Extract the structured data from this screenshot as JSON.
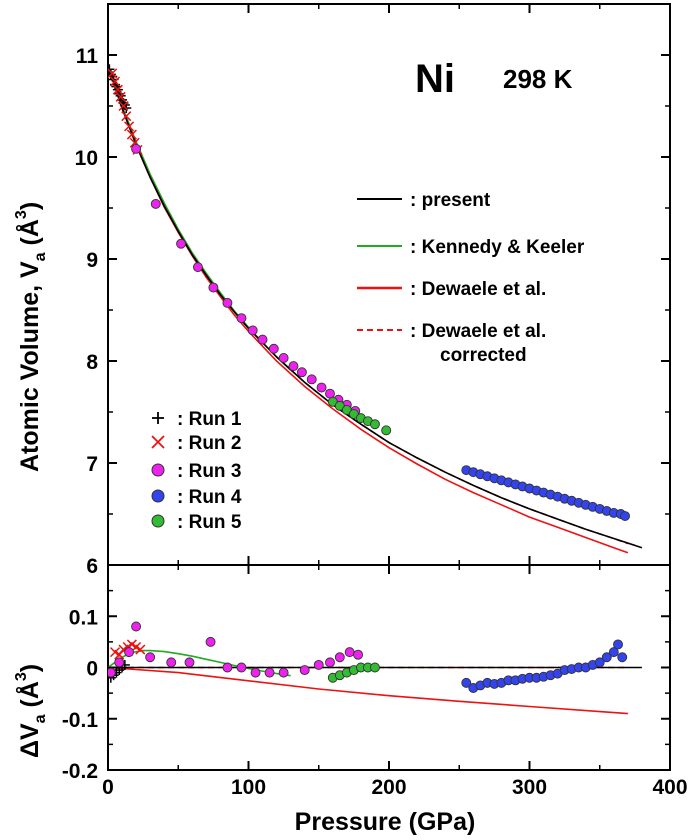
{
  "chart_data": [
    {
      "type": "scatter",
      "title": "Ni",
      "subtitle": "298 K",
      "xlabel": "Pressure (GPa)",
      "ylabel": "Atomic Volume, V_a (Å^3)",
      "ylabel_parts": {
        "main": "Atomic Volume, V",
        "sub": "a",
        "open": " (Å",
        "sup": "3",
        "close": ")"
      },
      "xlim": [
        0,
        400
      ],
      "ylim": [
        6,
        11.5
      ],
      "x_ticks": [
        0,
        100,
        200,
        300,
        400
      ],
      "y_ticks": [
        6,
        7,
        8,
        9,
        10,
        11
      ],
      "y_tick_labels": [
        "6",
        "7",
        "8",
        "9",
        "10",
        "11"
      ],
      "grid": false,
      "legend_lines_position": "right",
      "legend_markers_position": "bottom-left",
      "lines": [
        {
          "name": ": present",
          "color": "#000000",
          "dash": "solid",
          "x": [
            0,
            10,
            20,
            30,
            40,
            50,
            60,
            70,
            80,
            90,
            100,
            120,
            140,
            160,
            180,
            200,
            220,
            240,
            260,
            280,
            300,
            320,
            340,
            360,
            380
          ],
          "y": [
            10.9,
            10.48,
            10.12,
            9.8,
            9.52,
            9.27,
            9.04,
            8.84,
            8.65,
            8.48,
            8.32,
            8.04,
            7.79,
            7.57,
            7.38,
            7.2,
            7.05,
            6.91,
            6.78,
            6.66,
            6.55,
            6.45,
            6.35,
            6.26,
            6.17
          ]
        },
        {
          "name": ": Kennedy & Keeler",
          "color": "#22aa22",
          "dash": "solid",
          "x": [
            0,
            10,
            20,
            30,
            40,
            50,
            60,
            70,
            80,
            90,
            100,
            110,
            120,
            130
          ],
          "y": [
            10.9,
            10.5,
            10.15,
            9.83,
            9.55,
            9.29,
            9.06,
            8.86,
            8.67,
            8.49,
            8.33,
            8.18,
            8.04,
            7.91
          ]
        },
        {
          "name": ": Dewaele et al.",
          "color": "#ee1111",
          "dash": "solid",
          "x": [
            0,
            10,
            20,
            30,
            40,
            50,
            60,
            70,
            80,
            90,
            100,
            120,
            140,
            160,
            180,
            200,
            220,
            240,
            260,
            280,
            300,
            320,
            340,
            360,
            370
          ],
          "y": [
            10.9,
            10.48,
            10.12,
            9.8,
            9.51,
            9.26,
            9.03,
            8.82,
            8.63,
            8.45,
            8.29,
            8.0,
            7.75,
            7.53,
            7.33,
            7.15,
            6.99,
            6.84,
            6.71,
            6.59,
            6.47,
            6.37,
            6.27,
            6.17,
            6.12
          ]
        },
        {
          "name": ": Dewaele et al. corrected",
          "name_lines": [
            ": Dewaele et al.",
            "corrected"
          ],
          "color": "#ee1111",
          "dash": "dashed",
          "x": [
            0,
            10,
            20,
            30,
            40,
            50,
            60,
            70,
            80,
            90,
            100,
            120,
            140,
            160,
            180,
            200,
            220,
            240,
            260,
            280,
            300,
            320,
            340,
            360,
            370
          ],
          "y": [
            10.9,
            10.48,
            10.12,
            9.8,
            9.52,
            9.27,
            9.04,
            8.84,
            8.65,
            8.48,
            8.32,
            8.04,
            7.79,
            7.57,
            7.38,
            7.2,
            7.05,
            6.91,
            6.78,
            6.66,
            6.55,
            6.45,
            6.35,
            6.26,
            6.21
          ]
        }
      ],
      "markers": [
        {
          "name": ": Run 1",
          "symbol": "plus",
          "color": "#000000",
          "x": [
            1,
            2,
            3,
            4,
            5,
            6,
            7,
            8,
            9,
            10,
            11,
            12,
            13
          ],
          "y": [
            10.86,
            10.81,
            10.79,
            10.76,
            10.71,
            10.69,
            10.66,
            10.62,
            10.6,
            10.56,
            10.53,
            10.51,
            10.48
          ]
        },
        {
          "name": ": Run 2",
          "symbol": "cross",
          "color": "#ee1111",
          "x": [
            3,
            5,
            7,
            9,
            11,
            13,
            15,
            17,
            19,
            21
          ],
          "y": [
            10.82,
            10.74,
            10.66,
            10.59,
            10.5,
            10.4,
            10.3,
            10.22,
            10.14,
            10.07
          ]
        },
        {
          "name": ": Run 3",
          "symbol": "circle",
          "color": "#ee22ee",
          "x": [
            20,
            34,
            52,
            64,
            75,
            85,
            95,
            103,
            110,
            118,
            125,
            132,
            138,
            145,
            152,
            158,
            164,
            170,
            176
          ],
          "y": [
            10.08,
            9.54,
            9.15,
            8.92,
            8.72,
            8.57,
            8.42,
            8.3,
            8.21,
            8.12,
            8.03,
            7.95,
            7.89,
            7.82,
            7.74,
            7.68,
            7.62,
            7.57,
            7.51
          ]
        },
        {
          "name": ": Run 4",
          "symbol": "circle",
          "color": "#3344ee",
          "x": [
            255,
            260,
            265,
            270,
            275,
            280,
            285,
            290,
            295,
            300,
            305,
            310,
            315,
            320,
            325,
            330,
            335,
            340,
            345,
            350,
            355,
            360,
            365,
            368
          ],
          "y": [
            6.93,
            6.91,
            6.89,
            6.87,
            6.85,
            6.83,
            6.81,
            6.79,
            6.77,
            6.75,
            6.73,
            6.71,
            6.69,
            6.67,
            6.65,
            6.63,
            6.61,
            6.59,
            6.57,
            6.55,
            6.53,
            6.51,
            6.5,
            6.48
          ]
        },
        {
          "name": ": Run 5",
          "symbol": "circle",
          "color": "#33bb33",
          "x": [
            160,
            165,
            170,
            175,
            180,
            185,
            190,
            198
          ],
          "y": [
            7.6,
            7.56,
            7.52,
            7.48,
            7.44,
            7.41,
            7.38,
            7.32
          ]
        }
      ]
    },
    {
      "type": "scatter",
      "xlabel": "Pressure (GPa)",
      "ylabel": "ΔV_a (Å^3)",
      "ylabel_parts": {
        "main": "ΔV",
        "sub": "a",
        "open": " (Å",
        "sup": "3",
        "close": ")"
      },
      "xlim": [
        0,
        400
      ],
      "ylim": [
        -0.2,
        0.2
      ],
      "x_ticks": [
        0,
        100,
        200,
        300,
        400
      ],
      "x_tick_labels": [
        "0",
        "100",
        "200",
        "300",
        "400"
      ],
      "y_ticks": [
        -0.2,
        -0.1,
        0,
        0.1
      ],
      "y_tick_labels": [
        "-0.2",
        "-0.1",
        "0",
        "0.1"
      ],
      "lines": [
        {
          "name": "present",
          "color": "#000000",
          "dash": "solid",
          "x": [
            0,
            380
          ],
          "y": [
            0,
            0
          ]
        },
        {
          "name": "Kennedy & Keeler",
          "color": "#22aa22",
          "dash": "solid",
          "x": [
            0,
            5,
            10,
            15,
            20,
            25,
            30,
            40,
            50,
            60,
            70,
            80,
            90,
            100,
            110,
            120,
            130
          ],
          "y": [
            0.0,
            0.01,
            0.02,
            0.027,
            0.031,
            0.033,
            0.033,
            0.031,
            0.027,
            0.022,
            0.016,
            0.01,
            0.004,
            -0.002,
            -0.007,
            -0.012,
            -0.016
          ]
        },
        {
          "name": "Dewaele et al.",
          "color": "#ee1111",
          "dash": "solid",
          "x": [
            0,
            50,
            100,
            150,
            200,
            250,
            300,
            350,
            370
          ],
          "y": [
            0.0,
            -0.01,
            -0.026,
            -0.042,
            -0.055,
            -0.066,
            -0.076,
            -0.086,
            -0.09
          ]
        },
        {
          "name": "Dewaele et al. corrected",
          "color": "#ee1111",
          "dash": "dashed",
          "x": [
            0,
            370
          ],
          "y": [
            0,
            0
          ]
        }
      ],
      "markers": [
        {
          "name": "Run 1",
          "symbol": "plus",
          "color": "#000000",
          "x": [
            2,
            4,
            6,
            8,
            10,
            12
          ],
          "y": [
            -0.02,
            -0.015,
            -0.01,
            -0.005,
            0.0,
            0.005
          ]
        },
        {
          "name": "Run 2",
          "symbol": "cross",
          "color": "#ee1111",
          "x": [
            5,
            8,
            11,
            14,
            17,
            20,
            23
          ],
          "y": [
            0.03,
            0.025,
            0.035,
            0.04,
            0.045,
            0.04,
            0.035
          ]
        },
        {
          "name": "Run 3",
          "symbol": "circle",
          "color": "#ee22ee",
          "x": [
            2,
            8,
            15,
            20,
            30,
            45,
            58,
            73,
            85,
            95,
            105,
            115,
            125,
            140,
            150,
            158,
            165,
            172,
            178
          ],
          "y": [
            -0.01,
            0.01,
            0.03,
            0.08,
            0.02,
            0.01,
            0.01,
            0.05,
            0.0,
            0.0,
            -0.01,
            -0.01,
            -0.01,
            -0.005,
            0.005,
            0.01,
            0.02,
            0.03,
            0.025
          ]
        },
        {
          "name": "Run 4",
          "symbol": "circle",
          "color": "#3344ee",
          "x": [
            255,
            260,
            265,
            270,
            275,
            280,
            285,
            290,
            295,
            300,
            305,
            310,
            315,
            320,
            325,
            330,
            335,
            340,
            345,
            350,
            355,
            360,
            363,
            366
          ],
          "y": [
            -0.03,
            -0.04,
            -0.035,
            -0.03,
            -0.032,
            -0.03,
            -0.025,
            -0.025,
            -0.022,
            -0.02,
            -0.02,
            -0.018,
            -0.015,
            -0.012,
            -0.005,
            -0.003,
            0.0,
            0.0,
            0.005,
            0.01,
            0.02,
            0.03,
            0.045,
            0.02
          ]
        },
        {
          "name": "Run 5",
          "symbol": "circle",
          "color": "#33bb33",
          "x": [
            160,
            165,
            170,
            175,
            180,
            185,
            190
          ],
          "y": [
            -0.02,
            -0.015,
            -0.01,
            -0.005,
            0.0,
            0.0,
            0.0
          ]
        }
      ]
    }
  ]
}
